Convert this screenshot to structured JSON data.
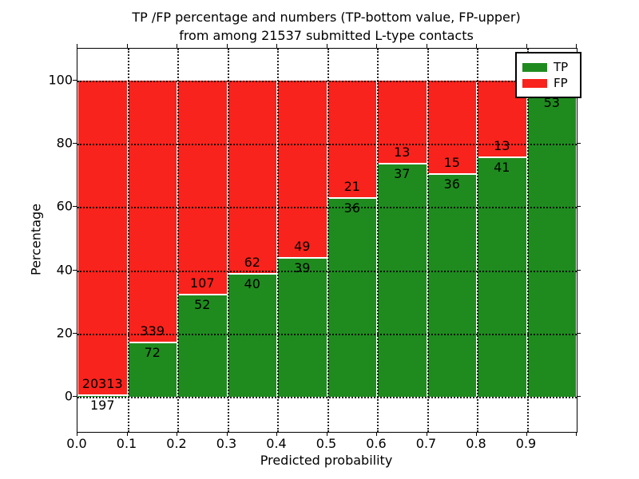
{
  "figure": {
    "title_line1": "TP /FP percentage and numbers (TP-bottom value, FP-upper)",
    "title_line2": "from among 21537 submitted L-type contacts",
    "xlabel": "Predicted probability",
    "ylabel": "Percentage"
  },
  "legend": {
    "items": [
      {
        "label": "TP",
        "color": "#1f8b1f"
      },
      {
        "label": "FP",
        "color": "#f8231c"
      }
    ]
  },
  "chart_data": {
    "type": "bar",
    "subtype": "stacked-percentage-histogram",
    "title": "TP /FP percentage and numbers (TP-bottom value, FP-upper) from among 21537 submitted L-type contacts",
    "xlabel": "Predicted probability",
    "ylabel": "Percentage",
    "x_tick_labels": [
      "0.0",
      "0.1",
      "0.2",
      "0.3",
      "0.4",
      "0.5",
      "0.6",
      "0.7",
      "0.8",
      "0.9"
    ],
    "y_ticks": [
      0,
      20,
      40,
      60,
      80,
      100
    ],
    "xlim": [
      0.0,
      1.0
    ],
    "ylim": [
      -11,
      110
    ],
    "grid": true,
    "legend_position": "upper-right",
    "series": [
      {
        "name": "TP",
        "color": "#1f8b1f",
        "position": "bottom"
      },
      {
        "name": "FP",
        "color": "#f8231c",
        "position": "top"
      }
    ],
    "bins": [
      {
        "range": [
          0.0,
          0.1
        ],
        "tp_count": 197,
        "fp_count": 20313,
        "tp_pct": 0.96,
        "fp_pct": 99.04
      },
      {
        "range": [
          0.1,
          0.2
        ],
        "tp_count": 72,
        "fp_count": 339,
        "tp_pct": 17.5,
        "fp_pct": 82.5
      },
      {
        "range": [
          0.2,
          0.3
        ],
        "tp_count": 52,
        "fp_count": 107,
        "tp_pct": 32.7,
        "fp_pct": 67.3
      },
      {
        "range": [
          0.3,
          0.4
        ],
        "tp_count": 40,
        "fp_count": 62,
        "tp_pct": 39.2,
        "fp_pct": 60.8
      },
      {
        "range": [
          0.4,
          0.5
        ],
        "tp_count": 39,
        "fp_count": 49,
        "tp_pct": 44.3,
        "fp_pct": 55.7
      },
      {
        "range": [
          0.5,
          0.6
        ],
        "tp_count": 36,
        "fp_count": 21,
        "tp_pct": 63.2,
        "fp_pct": 36.8
      },
      {
        "range": [
          0.6,
          0.7
        ],
        "tp_count": 37,
        "fp_count": 13,
        "tp_pct": 74.0,
        "fp_pct": 26.0
      },
      {
        "range": [
          0.7,
          0.8
        ],
        "tp_count": 36,
        "fp_count": 15,
        "tp_pct": 70.6,
        "fp_pct": 29.4
      },
      {
        "range": [
          0.8,
          0.9
        ],
        "tp_count": 41,
        "fp_count": 13,
        "tp_pct": 75.9,
        "fp_pct": 24.1
      },
      {
        "range": [
          0.9,
          1.0
        ],
        "tp_count": 53,
        "fp_count": null,
        "tp_pct": 96.4,
        "fp_pct": 3.6
      }
    ]
  }
}
